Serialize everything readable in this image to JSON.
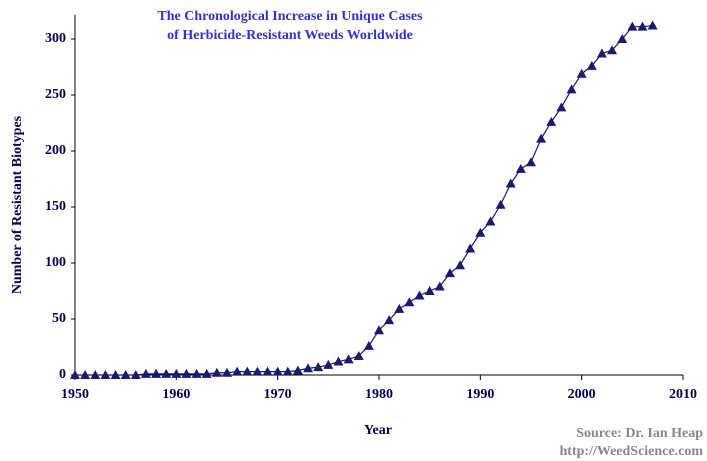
{
  "chart_data": {
    "type": "line",
    "title": [
      "The Chronological Increase in Unique Cases",
      "of Herbicide-Resistant Weeds Worldwide"
    ],
    "x_label": "Year",
    "y_label": "Number of Resistant Biotypes",
    "source": [
      "Source: Dr. Ian Heap",
      "http://WeedScience.com"
    ],
    "x": [
      1950,
      1951,
      1952,
      1953,
      1954,
      1955,
      1956,
      1957,
      1958,
      1959,
      1960,
      1961,
      1962,
      1963,
      1964,
      1965,
      1966,
      1967,
      1968,
      1969,
      1970,
      1971,
      1972,
      1973,
      1974,
      1975,
      1976,
      1977,
      1978,
      1979,
      1980,
      1981,
      1982,
      1983,
      1984,
      1985,
      1986,
      1987,
      1988,
      1989,
      1990,
      1991,
      1992,
      1993,
      1994,
      1995,
      1996,
      1997,
      1998,
      1999,
      2000,
      2001,
      2002,
      2003,
      2004,
      2005,
      2006,
      2007
    ],
    "values": [
      0,
      0,
      0,
      0,
      0,
      0,
      0,
      1,
      1,
      1,
      1,
      1,
      1,
      1,
      2,
      2,
      3,
      3,
      3,
      3,
      3,
      3,
      4,
      6,
      7,
      9,
      12,
      14,
      17,
      26,
      40,
      49,
      59,
      65,
      71,
      75,
      79,
      91,
      98,
      113,
      127,
      137,
      152,
      171,
      184,
      190,
      211,
      226,
      239,
      255,
      269,
      276,
      287,
      290,
      300,
      311,
      311,
      312
    ],
    "color": "#1a1a6e",
    "marker": "triangle",
    "xlim": [
      1950,
      2010
    ],
    "xticks": [
      1950,
      1960,
      1970,
      1980,
      1990,
      2000,
      2010
    ],
    "ylim": [
      0,
      300
    ],
    "yticks": [
      0,
      50,
      100,
      150,
      200,
      250,
      300
    ],
    "grid": false
  }
}
